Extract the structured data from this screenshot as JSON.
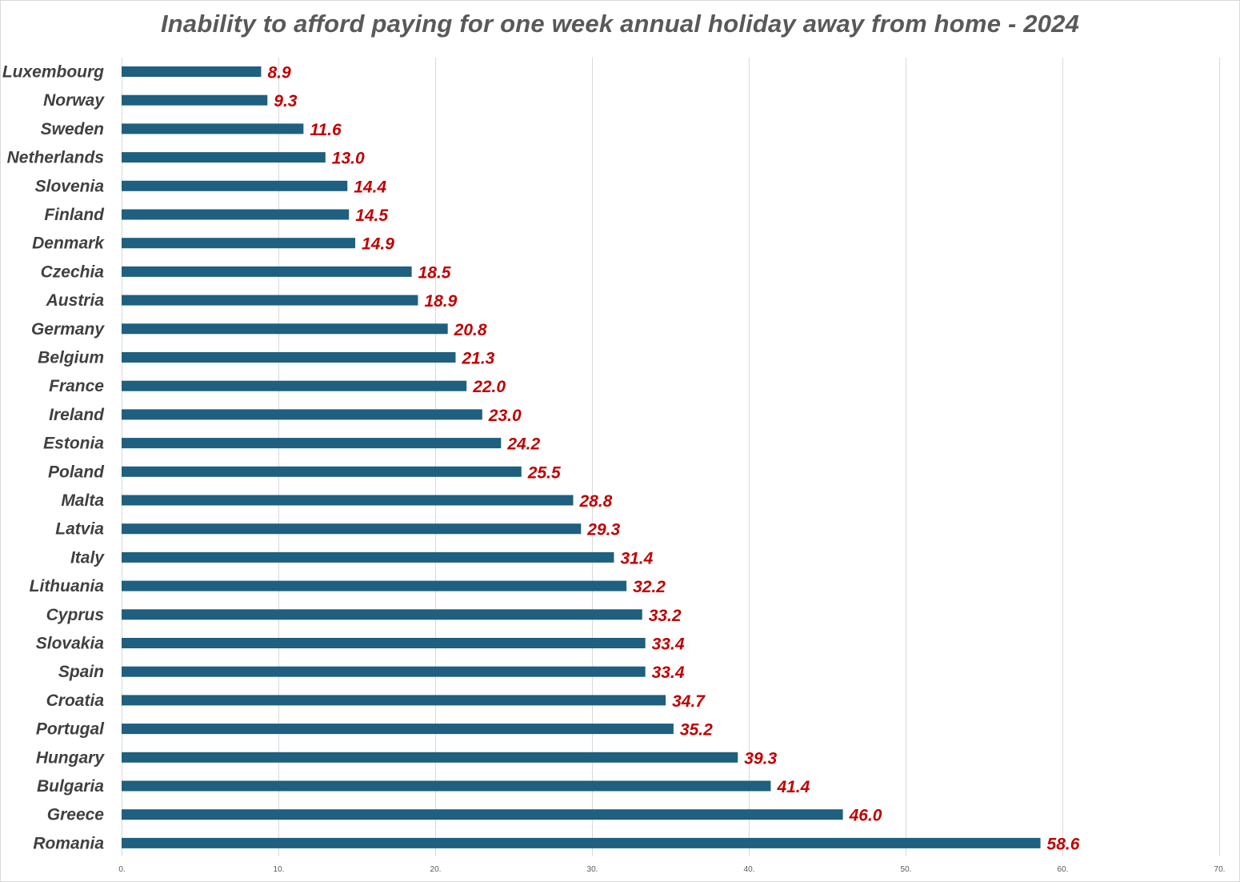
{
  "chart_data": {
    "type": "bar",
    "orientation": "horizontal",
    "title": "Inability to afford paying for one week annual holiday away from home - 2024",
    "xlabel": "",
    "ylabel": "",
    "xlim": [
      0,
      70
    ],
    "grid": true,
    "legend": "none",
    "bar_color": "#1f5f7f",
    "label_color": "#c00000",
    "categories": [
      "Luxembourg",
      "Norway",
      "Sweden",
      "Netherlands",
      "Slovenia",
      "Finland",
      "Denmark",
      "Czechia",
      "Austria",
      "Germany",
      "Belgium",
      "France",
      "Ireland",
      "Estonia",
      "Poland",
      "Malta",
      "Latvia",
      "Italy",
      "Lithuania",
      "Cyprus",
      "Slovakia",
      "Spain",
      "Croatia",
      "Portugal",
      "Hungary",
      "Bulgaria",
      "Greece",
      "Romania"
    ],
    "values": [
      8.9,
      9.3,
      11.6,
      13.0,
      14.4,
      14.5,
      14.9,
      18.5,
      18.9,
      20.8,
      21.3,
      22.0,
      23.0,
      24.2,
      25.5,
      28.8,
      29.3,
      31.4,
      32.2,
      33.2,
      33.4,
      33.4,
      34.7,
      35.2,
      39.3,
      41.4,
      46.0,
      58.6
    ],
    "data_labels": [
      "8.9",
      "9.3",
      "11.6",
      "13.0",
      "14.4",
      "14.5",
      "14.9",
      "18.5",
      "18.9",
      "20.8",
      "21.3",
      "22.0",
      "23.0",
      "24.2",
      "25.5",
      "28.8",
      "29.3",
      "31.4",
      "32.2",
      "33.2",
      "33.4",
      "33.4",
      "34.7",
      "35.2",
      "39.3",
      "41.4",
      "46.0",
      "58.6"
    ],
    "x_ticks": [
      0,
      10,
      20,
      30,
      40,
      50,
      60,
      70
    ],
    "x_tick_labels": [
      "0.",
      "10.",
      "20.",
      "30.",
      "40.",
      "50.",
      "60.",
      "70."
    ]
  }
}
